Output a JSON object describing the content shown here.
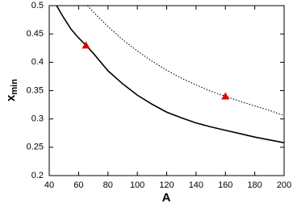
{
  "chart_data": {
    "type": "line",
    "xlabel": "A",
    "ylabel": {
      "text": "x",
      "subscript": "min"
    },
    "xlim": [
      40,
      200
    ],
    "xticks": [
      40,
      60,
      80,
      100,
      120,
      140,
      160,
      180,
      200
    ],
    "ylim": [
      0.2,
      0.5
    ],
    "yticks": [
      0.2,
      0.25,
      0.3,
      0.35,
      0.4,
      0.45,
      0.5
    ],
    "grid": false,
    "series": [
      {
        "color": "#000000",
        "dash": "solid",
        "marker": "none",
        "x": [
          45,
          50,
          55,
          60,
          65,
          70,
          80,
          90,
          100,
          110,
          120,
          130,
          140,
          150,
          160,
          170,
          180,
          190,
          200
        ],
        "values": [
          0.5,
          0.478,
          0.458,
          0.443,
          0.43,
          0.416,
          0.385,
          0.362,
          0.342,
          0.326,
          0.312,
          0.302,
          0.293,
          0.286,
          0.28,
          0.274,
          0.268,
          0.263,
          0.258
        ]
      },
      {
        "color": "#000000",
        "dash": "dotted",
        "marker": "none",
        "x": [
          66,
          70,
          80,
          90,
          100,
          110,
          120,
          130,
          140,
          150,
          160,
          170,
          180,
          190,
          200
        ],
        "values": [
          0.5,
          0.489,
          0.463,
          0.44,
          0.42,
          0.402,
          0.386,
          0.372,
          0.36,
          0.349,
          0.34,
          0.331,
          0.323,
          0.315,
          0.306
        ]
      },
      {
        "color": "#dd0000",
        "dash": "none",
        "marker": "triangle",
        "x": [
          65,
          160
        ],
        "values": [
          0.43,
          0.34
        ]
      }
    ]
  }
}
